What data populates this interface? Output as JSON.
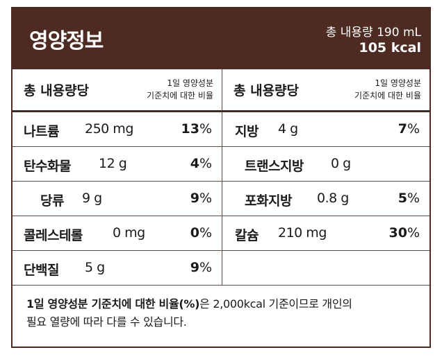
{
  "header": {
    "title": "영양정보",
    "total_volume": "총 내용량 190 mL",
    "calories": "105 kcal"
  },
  "table_head": {
    "left_label": "총 내용량당",
    "left_note_line1": "1일 영양성분",
    "left_note_line2": "기준치에 대한 비율",
    "right_label": "총 내용량당",
    "right_note_line1": "1일 영양성분",
    "right_note_line2": "기준치에 대한 비율"
  },
  "nutrients": {
    "sodium": {
      "name": "나트륨",
      "amount": "250 mg",
      "pct_value": "13",
      "pct_unit": "%"
    },
    "fat": {
      "name": "지방",
      "amount": "4 g",
      "pct_value": "7",
      "pct_unit": "%"
    },
    "carbs": {
      "name": "탄수화물",
      "amount": "12 g",
      "pct_value": "4",
      "pct_unit": "%"
    },
    "trans_fat": {
      "name": "트랜스지방",
      "amount": "0 g"
    },
    "sugars": {
      "name": "당류",
      "amount": "9 g",
      "pct_value": "9",
      "pct_unit": "%"
    },
    "sat_fat": {
      "name": "포화지방",
      "amount": "0.8 g",
      "pct_value": "5",
      "pct_unit": "%"
    },
    "cholesterol": {
      "name": "콜레스테롤",
      "amount": "0 mg",
      "pct_value": "0",
      "pct_unit": "%"
    },
    "calcium": {
      "name": "칼슘",
      "amount": "210 mg",
      "pct_value": "30",
      "pct_unit": "%"
    },
    "protein": {
      "name": "단백질",
      "amount": "5 g",
      "pct_value": "9",
      "pct_unit": "%"
    }
  },
  "footnote": {
    "bold_part": "1일 영양성분 기준치에 대한 비율(%)",
    "rest_line1": "은 2,000kcal 기준이므로 개인의",
    "line2": "필요 열량에 따라 다를 수 있습니다."
  }
}
